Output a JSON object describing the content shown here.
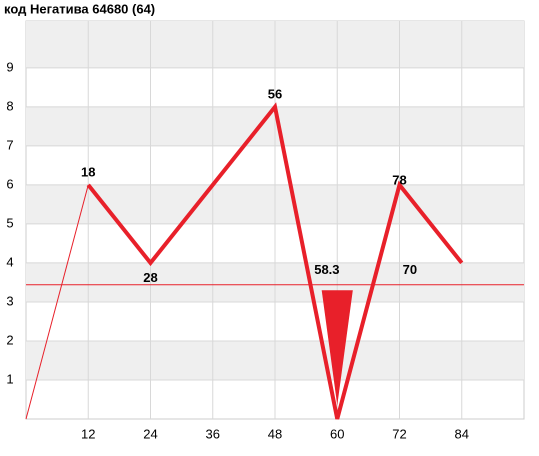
{
  "chart_data": {
    "type": "line",
    "title": "код Негатива  64680  (64)",
    "series": [
      {
        "color": "#e8202a",
        "x": [
          12,
          24,
          48,
          60,
          72,
          84
        ],
        "values": [
          6,
          4,
          8,
          0,
          6,
          4
        ],
        "width": 4
      },
      {
        "color": "#e8202a",
        "x": [
          0,
          12
        ],
        "values": [
          0,
          6
        ],
        "width": 1
      }
    ],
    "threshold": 3.44,
    "triangle": {
      "color": "#e8202a",
      "x": [
        57,
        63,
        60
      ],
      "y": [
        3.3,
        3.3,
        0.35
      ]
    },
    "annotations": [
      {
        "text": "18",
        "x": 12,
        "y": 6.3
      },
      {
        "text": "28",
        "x": 24,
        "y": 3.6
      },
      {
        "text": "56",
        "x": 48,
        "y": 8.3
      },
      {
        "text": "78",
        "x": 72,
        "y": 6.1
      },
      {
        "text": "70",
        "x": 74,
        "y": 3.8
      },
      {
        "text": "58.3",
        "x": 58,
        "y": 3.8
      }
    ],
    "xlim": [
      0,
      96
    ],
    "xticks": [
      12,
      24,
      36,
      48,
      60,
      72,
      84
    ],
    "ylim": [
      0,
      10.2
    ],
    "yticks": [
      1,
      2,
      3,
      4,
      5,
      6,
      7,
      8,
      9
    ],
    "grid": true
  }
}
